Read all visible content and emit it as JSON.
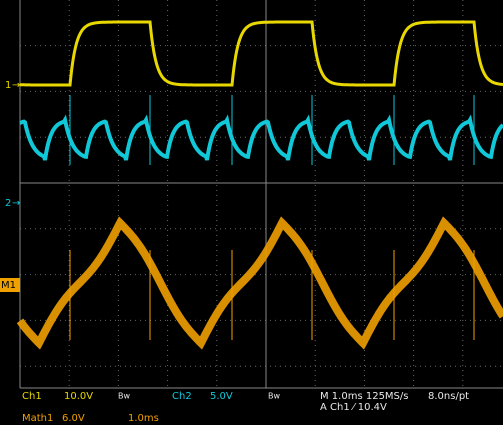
{
  "markers": {
    "ch1": "1",
    "ch2": "2",
    "math1": "M1"
  },
  "status": {
    "ch1_label": "Ch1",
    "ch1_scale": "10.0V",
    "ch1_bw": "Bw",
    "ch2_label": "Ch2",
    "ch2_scale": "5.0V",
    "ch2_bw": "Bw",
    "timebase": "M 1.0ms 125MS/s",
    "resolution": "8.0ns/pt",
    "trigger": "A Ch1 ⁄ 10.4V",
    "math_label": "Math1",
    "math_scale": "6.0V",
    "math_time": "1.0ms"
  }
}
